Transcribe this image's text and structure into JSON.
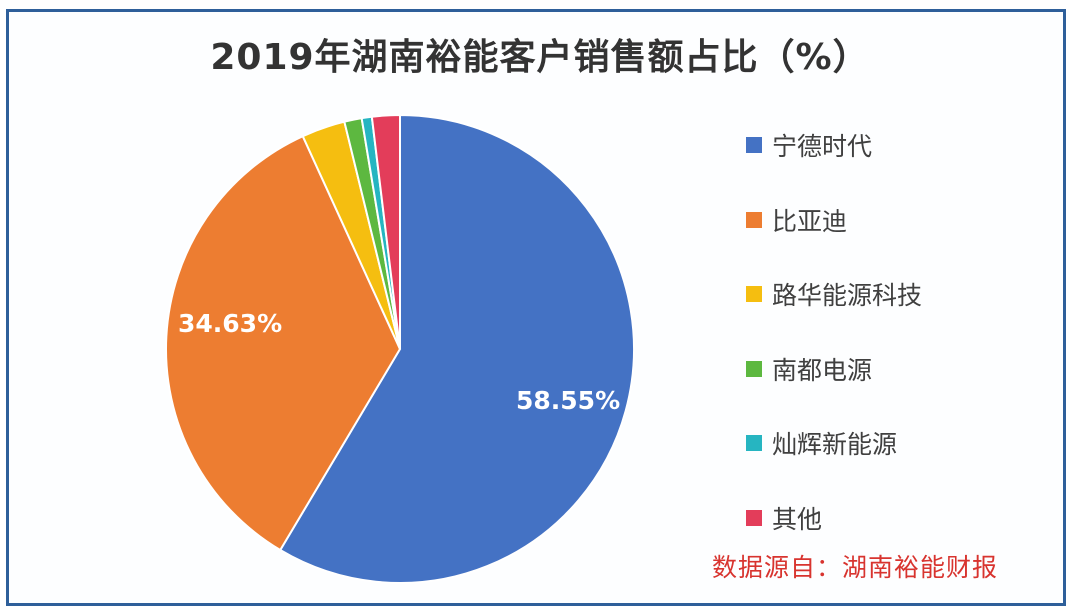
{
  "chart_data": {
    "type": "pie",
    "title": "2019年湖南裕能客户销售额占比（%）",
    "categories": [
      "宁德时代",
      "比亚迪",
      "路华能源科技",
      "南都电源",
      "灿辉新能源",
      "其他"
    ],
    "values": [
      58.55,
      34.63,
      3.0,
      1.2,
      0.7,
      1.92
    ],
    "colors": [
      "#4472c4",
      "#ed7d31",
      "#f5be10",
      "#5db840",
      "#26b5c1",
      "#e33d5a"
    ],
    "data_labels": [
      "58.55%",
      "34.63%"
    ],
    "start_angle": "12 o'clock, clockwise",
    "legend_position": "right",
    "annotation": "数据源自：湖南裕能财报"
  },
  "title": "2019年湖南裕能客户销售额占比（%）",
  "labels": {
    "blue": "58.55%",
    "orange": "34.63%"
  },
  "legend": [
    {
      "label": "宁德时代",
      "color": "#4472c4"
    },
    {
      "label": "比亚迪",
      "color": "#ed7d31"
    },
    {
      "label": "路华能源科技",
      "color": "#f5be10"
    },
    {
      "label": "南都电源",
      "color": "#5db840"
    },
    {
      "label": "灿辉新能源",
      "color": "#26b5c1"
    },
    {
      "label": "其他",
      "color": "#e33d5a"
    }
  ],
  "source": "数据源自：湖南裕能财报"
}
